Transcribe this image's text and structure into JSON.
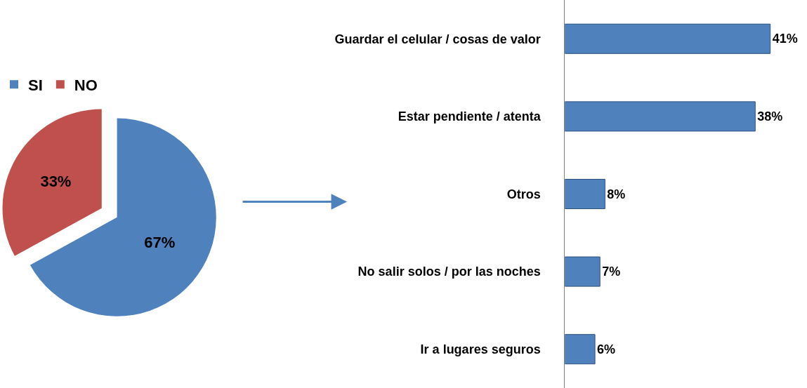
{
  "chart_data": [
    {
      "type": "pie",
      "categories": [
        "SI",
        "NO"
      ],
      "values": [
        67,
        33
      ],
      "colors": [
        "#4f81bd",
        "#c0504d"
      ],
      "value_labels": [
        "67%",
        "33%"
      ],
      "legend": "top left"
    },
    {
      "type": "bar",
      "orientation": "horizontal",
      "categories": [
        "Guardar el celular / cosas de valor",
        "Estar pendiente / atenta",
        "Otros",
        "No salir solos / por las noches",
        "Ir a lugares seguros"
      ],
      "values": [
        41,
        38,
        8,
        7,
        6
      ],
      "color": "#4f81bd",
      "value_labels": [
        "41%",
        "38%",
        "8%",
        "7%",
        "6%"
      ]
    }
  ]
}
